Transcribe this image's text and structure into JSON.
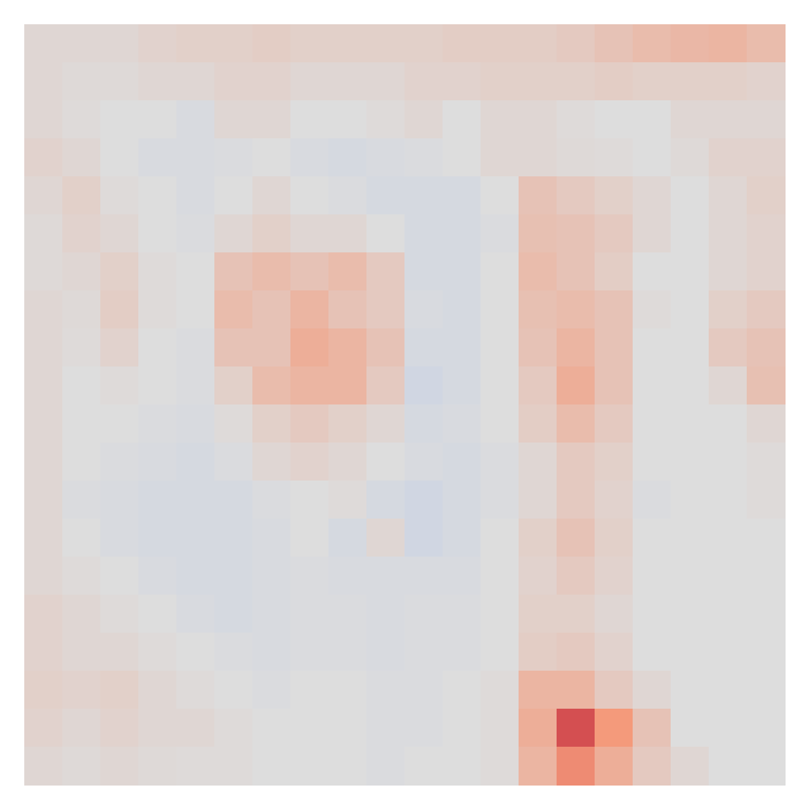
{
  "chart_data": {
    "type": "heatmap",
    "tick_labels": false,
    "zlim": [
      -1,
      1
    ],
    "values": [
      [
        0.05,
        0.05,
        0.05,
        0.08,
        0.1,
        0.1,
        0.12,
        0.1,
        0.1,
        0.1,
        0.1,
        0.12,
        0.12,
        0.12,
        0.15,
        0.2,
        0.25,
        0.28,
        0.3,
        0.25
      ],
      [
        0.05,
        0.03,
        0.03,
        0.05,
        0.05,
        0.08,
        0.08,
        0.05,
        0.05,
        0.05,
        0.08,
        0.08,
        0.1,
        0.1,
        0.1,
        0.12,
        0.1,
        0.1,
        0.1,
        0.08
      ],
      [
        0.05,
        0.02,
        0,
        0,
        -0.03,
        0.05,
        0.05,
        0,
        0,
        0.02,
        0.05,
        0,
        0.05,
        0.05,
        0.02,
        0,
        0,
        0.05,
        0.05,
        0.05
      ],
      [
        0.08,
        0.05,
        0,
        -0.03,
        -0.03,
        -0.02,
        0,
        -0.03,
        -0.05,
        -0.03,
        -0.02,
        0,
        0.05,
        0.05,
        0.03,
        0.02,
        0,
        0.03,
        0.08,
        0.08
      ],
      [
        0.05,
        0.1,
        0.02,
        0,
        -0.03,
        0,
        0.05,
        0,
        -0.02,
        -0.05,
        -0.05,
        -0.05,
        0,
        0.2,
        0.15,
        0.1,
        0.05,
        0,
        0.05,
        0.1
      ],
      [
        0.03,
        0.08,
        0.05,
        0,
        -0.02,
        0.05,
        0.1,
        0.05,
        0.05,
        0,
        -0.05,
        -0.05,
        -0.02,
        0.22,
        0.2,
        0.15,
        0.05,
        0,
        0.05,
        0.08
      ],
      [
        0.03,
        0.05,
        0.1,
        0.02,
        0,
        0.2,
        0.25,
        0.2,
        0.25,
        0.15,
        -0.05,
        -0.05,
        0,
        0.25,
        0.2,
        0.12,
        0,
        0,
        0.05,
        0.08
      ],
      [
        0.05,
        0.03,
        0.12,
        0.02,
        0,
        0.25,
        0.2,
        0.3,
        0.2,
        0.15,
        -0.03,
        -0.05,
        0,
        0.22,
        0.25,
        0.2,
        0.02,
        0,
        0.1,
        0.15
      ],
      [
        0.05,
        0.02,
        0.08,
        0,
        -0.02,
        0.2,
        0.2,
        0.35,
        0.3,
        0.2,
        -0.05,
        -0.05,
        0,
        0.2,
        0.3,
        0.2,
        0,
        0,
        0.15,
        0.2
      ],
      [
        0.05,
        0,
        0.02,
        0,
        -0.02,
        0.1,
        0.25,
        0.3,
        0.3,
        0.15,
        -0.08,
        -0.05,
        0,
        0.15,
        0.35,
        0.2,
        0,
        0,
        0.05,
        0.22
      ],
      [
        0.05,
        0,
        0,
        -0.02,
        -0.03,
        0.02,
        0.1,
        0.15,
        0.1,
        0.05,
        -0.05,
        -0.03,
        0,
        0.12,
        0.25,
        0.15,
        0,
        0,
        0,
        0.05
      ],
      [
        0.05,
        0,
        -0.02,
        -0.03,
        -0.05,
        -0.02,
        0.05,
        0.08,
        0.05,
        0,
        -0.03,
        -0.05,
        -0.02,
        0.05,
        0.15,
        0.1,
        0,
        0,
        0,
        0.02
      ],
      [
        0.05,
        -0.02,
        -0.03,
        -0.05,
        -0.05,
        -0.05,
        -0.02,
        0,
        0.02,
        -0.05,
        -0.08,
        -0.05,
        -0.02,
        0.05,
        0.15,
        0.08,
        -0.02,
        0,
        0,
        0.02
      ],
      [
        0.05,
        0,
        -0.03,
        -0.05,
        -0.05,
        -0.05,
        -0.03,
        0,
        -0.05,
        0.05,
        -0.08,
        -0.05,
        0,
        0.1,
        0.2,
        0.1,
        0,
        0,
        0,
        0
      ],
      [
        0.05,
        0.02,
        0,
        -0.03,
        -0.05,
        -0.05,
        -0.03,
        -0.02,
        -0.03,
        -0.03,
        -0.03,
        -0.03,
        0,
        0.08,
        0.15,
        0.08,
        0,
        0,
        0,
        0
      ],
      [
        0.08,
        0.05,
        0.02,
        0,
        -0.03,
        -0.05,
        -0.03,
        -0.02,
        -0.02,
        -0.03,
        -0.02,
        -0.02,
        0,
        0.1,
        0.1,
        0.05,
        0,
        0,
        0,
        0
      ],
      [
        0.08,
        0.05,
        0.05,
        0.02,
        0,
        -0.02,
        -0.03,
        -0.02,
        -0.02,
        -0.03,
        -0.02,
        -0.02,
        0,
        0.12,
        0.15,
        0.08,
        0,
        0,
        0,
        0
      ],
      [
        0.1,
        0.08,
        0.1,
        0.05,
        0.02,
        0,
        -0.02,
        0,
        0,
        -0.02,
        -0.02,
        0,
        0.02,
        0.3,
        0.3,
        0.15,
        0.05,
        0,
        0,
        0
      ],
      [
        0.08,
        0.05,
        0.08,
        0.05,
        0.05,
        0.02,
        0,
        0,
        0,
        -0.02,
        -0.02,
        0,
        0.02,
        0.35,
        0.75,
        0.5,
        0.2,
        0,
        0,
        0
      ],
      [
        0.05,
        0.03,
        0.05,
        0.03,
        0.02,
        0.02,
        0,
        0,
        0,
        -0.02,
        0,
        0,
        0.02,
        0.3,
        0.55,
        0.35,
        0.15,
        0.05,
        0,
        0
      ]
    ]
  }
}
